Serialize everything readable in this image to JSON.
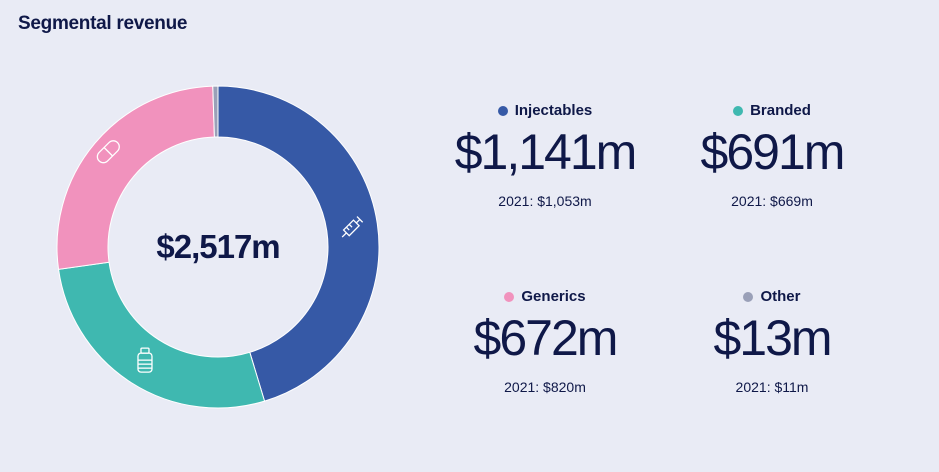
{
  "title": "Segmental revenue",
  "total": "$2,517m",
  "segments": [
    {
      "name": "Injectables",
      "value": "$1,141m",
      "prior": "2021: $1,053m",
      "color": "#3659a6",
      "icon": "syringe-icon"
    },
    {
      "name": "Branded",
      "value": "$691m",
      "prior": "2021: $669m",
      "color": "#3fb8b0",
      "icon": "medicine-bottle-icon"
    },
    {
      "name": "Generics",
      "value": "$672m",
      "prior": "2021: $820m",
      "color": "#f192bd",
      "icon": "capsule-icon"
    },
    {
      "name": "Other",
      "value": "$13m",
      "prior": "2021: $11m",
      "color": "#9aa0b8",
      "icon": ""
    }
  ],
  "chart_data": {
    "type": "pie",
    "title": "Segmental revenue",
    "center_label": "$2,517m",
    "categories": [
      "Injectables",
      "Branded",
      "Generics",
      "Other"
    ],
    "values": [
      1141,
      691,
      672,
      13
    ],
    "prior_year": [
      1053,
      669,
      820,
      11
    ],
    "unit": "$m"
  }
}
